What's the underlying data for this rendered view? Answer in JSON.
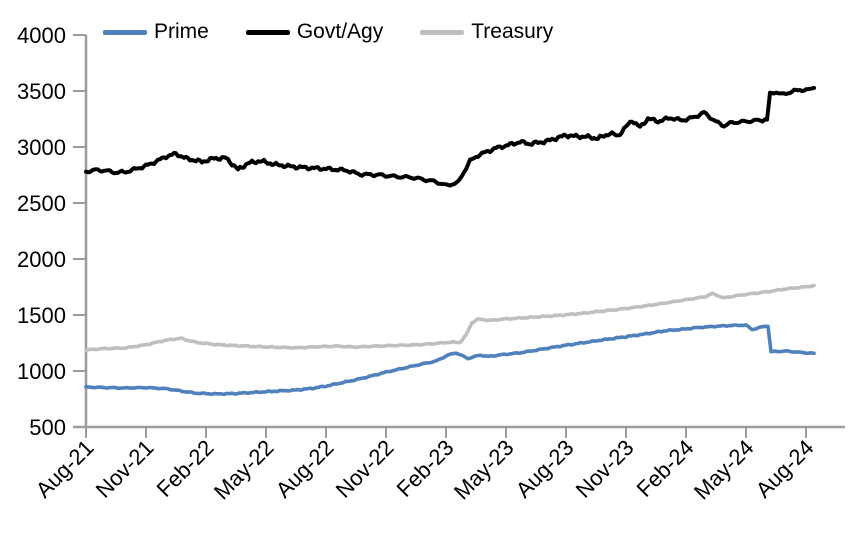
{
  "chart_data": {
    "type": "line",
    "title": "",
    "legend": {
      "position": "top",
      "items": [
        "Prime",
        "Govt/Agy",
        "Treasury"
      ]
    },
    "x_axis": {
      "unit": "months_since_Aug-2021",
      "months_per_tick": 3,
      "tick_labels": [
        "Aug-21",
        "Nov-21",
        "Feb-22",
        "May-22",
        "Aug-22",
        "Nov-22",
        "Feb-23",
        "May-23",
        "Aug-23",
        "Nov-23",
        "Feb-24",
        "May-24",
        "Aug-24"
      ],
      "label_rotation_deg": -45,
      "range": [
        0,
        36.4
      ]
    },
    "y_axis": {
      "min": 500,
      "max": 4000,
      "step": 500,
      "tick_labels": [
        "500",
        "1000",
        "1500",
        "2000",
        "2500",
        "3000",
        "3500",
        "4000"
      ]
    },
    "grid": false,
    "axis_color": "#9C9C9C",
    "text_color": "#000000",
    "series": [
      {
        "name": "Prime",
        "color": "#4F81BD",
        "stroke_width": 3.6,
        "noise_amplitude": 6,
        "points": [
          [
            0,
            856
          ],
          [
            1,
            852
          ],
          [
            2,
            848
          ],
          [
            3,
            852
          ],
          [
            4,
            842
          ],
          [
            5,
            815
          ],
          [
            5.5,
            802
          ],
          [
            6.5,
            795
          ],
          [
            7.5,
            799
          ],
          [
            8.5,
            810
          ],
          [
            9.5,
            820
          ],
          [
            10.5,
            830
          ],
          [
            11.3,
            845
          ],
          [
            12,
            865
          ],
          [
            12.7,
            892
          ],
          [
            13.5,
            922
          ],
          [
            14.2,
            952
          ],
          [
            15,
            990
          ],
          [
            16,
            1030
          ],
          [
            16.8,
            1062
          ],
          [
            17.5,
            1088
          ],
          [
            18.1,
            1142
          ],
          [
            18.5,
            1162
          ],
          [
            19.1,
            1112
          ],
          [
            19.7,
            1142
          ],
          [
            20.1,
            1130
          ],
          [
            21,
            1150
          ],
          [
            21.7,
            1162
          ],
          [
            22.5,
            1186
          ],
          [
            23.3,
            1210
          ],
          [
            24,
            1230
          ],
          [
            25,
            1256
          ],
          [
            26,
            1282
          ],
          [
            27,
            1306
          ],
          [
            28,
            1332
          ],
          [
            29,
            1360
          ],
          [
            29.8,
            1372
          ],
          [
            30.6,
            1388
          ],
          [
            31.4,
            1398
          ],
          [
            32.2,
            1406
          ],
          [
            33,
            1410
          ],
          [
            33.3,
            1370
          ],
          [
            33.9,
            1398
          ],
          [
            34.1,
            1398
          ],
          [
            34.25,
            1172
          ],
          [
            35,
            1178
          ],
          [
            35.6,
            1168
          ],
          [
            36,
            1162
          ],
          [
            36.4,
            1158
          ]
        ]
      },
      {
        "name": "Govt/Agy",
        "color": "#000000",
        "stroke_width": 4,
        "noise_amplitude": 18,
        "points": [
          [
            0,
            2780
          ],
          [
            0.5,
            2795
          ],
          [
            1,
            2788
          ],
          [
            1.5,
            2772
          ],
          [
            2,
            2778
          ],
          [
            2.5,
            2805
          ],
          [
            3,
            2832
          ],
          [
            3.5,
            2870
          ],
          [
            4,
            2915
          ],
          [
            4.5,
            2940
          ],
          [
            5,
            2898
          ],
          [
            5.8,
            2868
          ],
          [
            6.4,
            2898
          ],
          [
            7,
            2902
          ],
          [
            7.6,
            2798
          ],
          [
            8.1,
            2855
          ],
          [
            8.7,
            2875
          ],
          [
            9.5,
            2842
          ],
          [
            10.3,
            2825
          ],
          [
            11,
            2815
          ],
          [
            12,
            2805
          ],
          [
            13,
            2792
          ],
          [
            13.7,
            2756
          ],
          [
            14.7,
            2750
          ],
          [
            15.5,
            2736
          ],
          [
            16.3,
            2728
          ],
          [
            17,
            2706
          ],
          [
            17.5,
            2690
          ],
          [
            18,
            2656
          ],
          [
            18.6,
            2682
          ],
          [
            19.2,
            2875
          ],
          [
            19.6,
            2925
          ],
          [
            20,
            2955
          ],
          [
            20.5,
            2990
          ],
          [
            21,
            3012
          ],
          [
            21.7,
            3045
          ],
          [
            22.2,
            3028
          ],
          [
            23,
            3050
          ],
          [
            24,
            3105
          ],
          [
            24.5,
            3095
          ],
          [
            25,
            3092
          ],
          [
            25.6,
            3076
          ],
          [
            26.2,
            3122
          ],
          [
            26.6,
            3100
          ],
          [
            27.3,
            3238
          ],
          [
            27.7,
            3175
          ],
          [
            28.1,
            3255
          ],
          [
            28.6,
            3228
          ],
          [
            29.2,
            3260
          ],
          [
            29.8,
            3238
          ],
          [
            30.4,
            3265
          ],
          [
            30.9,
            3308
          ],
          [
            31.5,
            3225
          ],
          [
            31.9,
            3190
          ],
          [
            32.3,
            3218
          ],
          [
            33,
            3228
          ],
          [
            33.6,
            3238
          ],
          [
            34.05,
            3245
          ],
          [
            34.2,
            3475
          ],
          [
            34.5,
            3492
          ],
          [
            34.8,
            3468
          ],
          [
            35.2,
            3490
          ],
          [
            35.7,
            3512
          ],
          [
            36,
            3505
          ],
          [
            36.4,
            3528
          ]
        ]
      },
      {
        "name": "Treasury",
        "color": "#BFBFBF",
        "stroke_width": 3.6,
        "noise_amplitude": 6,
        "points": [
          [
            0,
            1188
          ],
          [
            0.5,
            1195
          ],
          [
            1,
            1200
          ],
          [
            2,
            1206
          ],
          [
            3,
            1235
          ],
          [
            4,
            1275
          ],
          [
            4.7,
            1292
          ],
          [
            5.5,
            1256
          ],
          [
            6.5,
            1236
          ],
          [
            7.5,
            1226
          ],
          [
            8.5,
            1218
          ],
          [
            9.5,
            1212
          ],
          [
            10.5,
            1207
          ],
          [
            11.5,
            1216
          ],
          [
            12.5,
            1222
          ],
          [
            13.5,
            1214
          ],
          [
            14.5,
            1222
          ],
          [
            15.5,
            1228
          ],
          [
            16.5,
            1233
          ],
          [
            17.5,
            1246
          ],
          [
            18.3,
            1258
          ],
          [
            18.7,
            1255
          ],
          [
            19,
            1320
          ],
          [
            19.3,
            1432
          ],
          [
            19.6,
            1462
          ],
          [
            20.2,
            1452
          ],
          [
            21,
            1465
          ],
          [
            22,
            1476
          ],
          [
            23,
            1488
          ],
          [
            24,
            1502
          ],
          [
            25,
            1518
          ],
          [
            26,
            1538
          ],
          [
            27,
            1558
          ],
          [
            28,
            1582
          ],
          [
            29,
            1608
          ],
          [
            30,
            1636
          ],
          [
            31,
            1665
          ],
          [
            31.3,
            1692
          ],
          [
            31.9,
            1652
          ],
          [
            32.5,
            1672
          ],
          [
            33,
            1684
          ],
          [
            34,
            1706
          ],
          [
            35,
            1733
          ],
          [
            36,
            1752
          ],
          [
            36.4,
            1763
          ]
        ]
      }
    ]
  }
}
